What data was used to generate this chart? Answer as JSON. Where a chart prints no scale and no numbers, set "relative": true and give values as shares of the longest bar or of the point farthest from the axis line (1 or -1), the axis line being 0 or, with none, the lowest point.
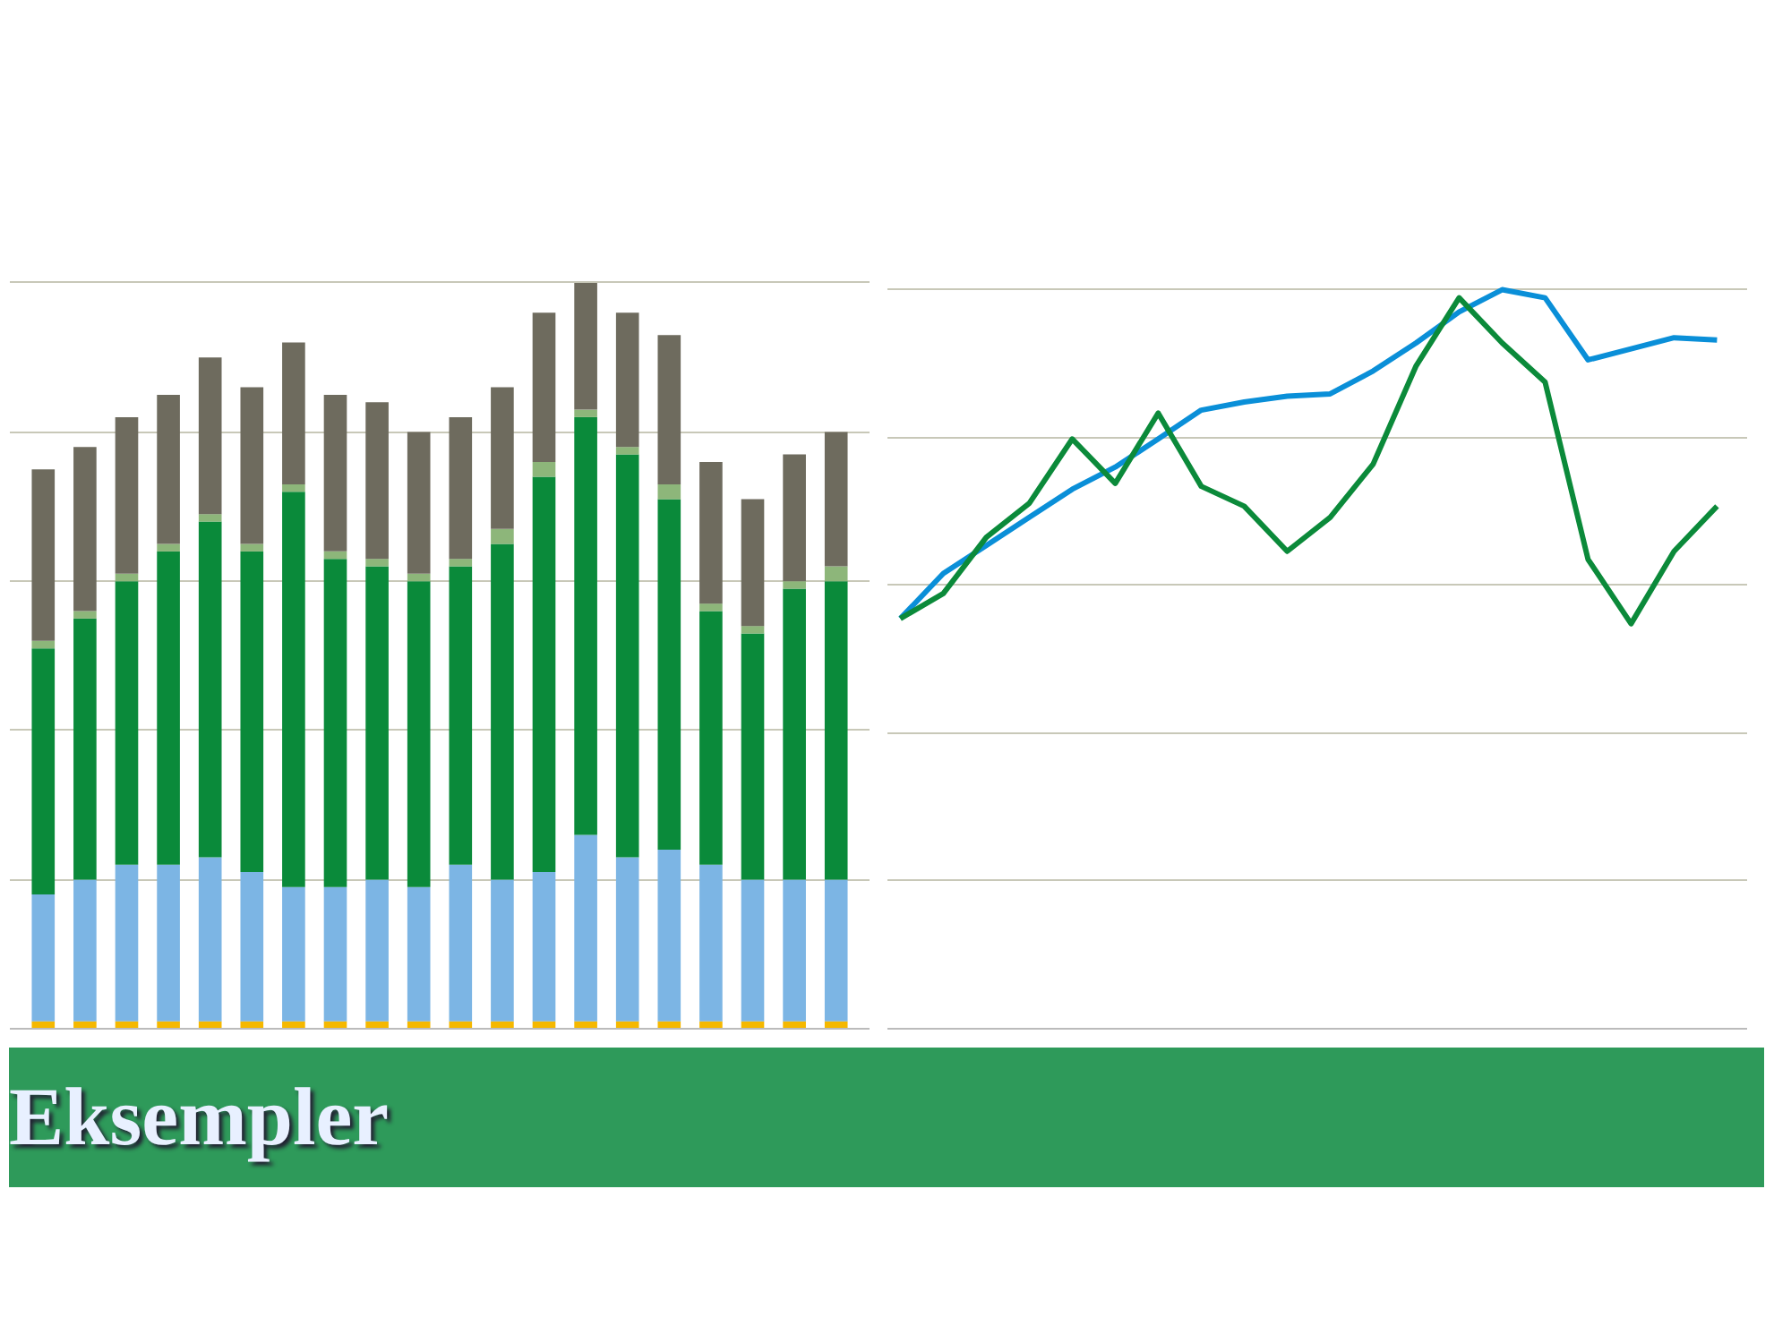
{
  "chart_data": [
    {
      "type": "bar",
      "stacked": true,
      "relative": true,
      "grid": "y",
      "categories": [
        null,
        null,
        null,
        null,
        null,
        null,
        null,
        null,
        null,
        null,
        null,
        null,
        null,
        null,
        null,
        null,
        null,
        null,
        null,
        null
      ],
      "series": [
        {
          "color": "#f5b800",
          "values": [
            0.01,
            0.01,
            0.01,
            0.01,
            0.01,
            0.01,
            0.01,
            0.01,
            0.01,
            0.01,
            0.01,
            0.01,
            0.01,
            0.01,
            0.01,
            0.01,
            0.01,
            0.01,
            0.01,
            0.01
          ]
        },
        {
          "color": "#7cb5e4",
          "values": [
            0.17,
            0.19,
            0.21,
            0.21,
            0.22,
            0.2,
            0.18,
            0.18,
            0.19,
            0.18,
            0.21,
            0.19,
            0.2,
            0.25,
            0.22,
            0.23,
            0.21,
            0.19,
            0.19,
            0.19
          ]
        },
        {
          "color": "#0a8a3a",
          "values": [
            0.33,
            0.35,
            0.38,
            0.42,
            0.45,
            0.43,
            0.53,
            0.44,
            0.42,
            0.41,
            0.4,
            0.45,
            0.53,
            0.56,
            0.54,
            0.47,
            0.34,
            0.33,
            0.39,
            0.4
          ]
        },
        {
          "color": "#8db67a",
          "values": [
            0.01,
            0.01,
            0.01,
            0.01,
            0.01,
            0.01,
            0.01,
            0.01,
            0.01,
            0.01,
            0.01,
            0.02,
            0.02,
            0.01,
            0.01,
            0.02,
            0.01,
            0.01,
            0.01,
            0.02
          ]
        },
        {
          "color": "#6e6b5e",
          "values": [
            0.23,
            0.22,
            0.21,
            0.2,
            0.21,
            0.21,
            0.19,
            0.21,
            0.21,
            0.19,
            0.19,
            0.19,
            0.2,
            0.17,
            0.18,
            0.2,
            0.19,
            0.17,
            0.17,
            0.18
          ]
        }
      ],
      "annotations": [
        "Eksempler"
      ]
    },
    {
      "type": "line",
      "relative": true,
      "grid": "y",
      "line_style": "solid",
      "marker": "none",
      "categories": [
        null,
        null,
        null,
        null,
        null,
        null,
        null,
        null,
        null,
        null,
        null,
        null,
        null,
        null,
        null,
        null,
        null,
        null,
        null,
        null
      ],
      "series": [
        {
          "color": "#0a8fd8",
          "values": [
            0.555,
            0.616,
            0.654,
            0.692,
            0.73,
            0.76,
            0.798,
            0.837,
            0.848,
            0.856,
            0.859,
            0.89,
            0.928,
            0.97,
            1.0,
            0.989,
            0.905,
            0.92,
            0.935,
            0.932
          ]
        },
        {
          "color": "#0b8a3a",
          "values": [
            0.555,
            0.589,
            0.665,
            0.711,
            0.798,
            0.738,
            0.833,
            0.734,
            0.707,
            0.646,
            0.692,
            0.764,
            0.897,
            0.989,
            0.928,
            0.875,
            0.635,
            0.548,
            0.646,
            0.707
          ]
        }
      ]
    }
  ]
}
